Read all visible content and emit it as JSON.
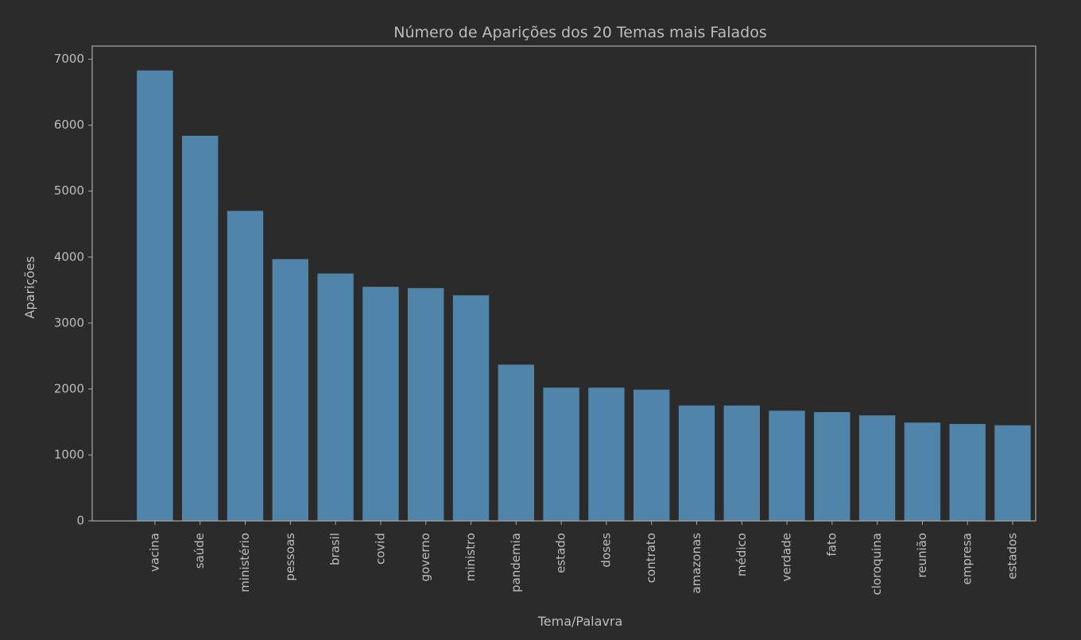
{
  "colors": {
    "background": "#2b2b2b",
    "bar": "#5084a8",
    "axis": "#a9a9a9",
    "text": "#bdbdbd"
  },
  "chart_data": {
    "type": "bar",
    "title": "Número de Aparições dos 20 Temas mais Falados",
    "xlabel": "Tema/Palavra",
    "ylabel": "Aparições",
    "ylim": [
      0,
      7200
    ],
    "yticks": [
      0,
      1000,
      2000,
      3000,
      4000,
      5000,
      6000,
      7000
    ],
    "grid": false,
    "categories": [
      "vacina",
      "saúde",
      "ministério",
      "pessoas",
      "brasil",
      "covid",
      "governo",
      "ministro",
      "pandemia",
      "estado",
      "doses",
      "contrato",
      "amazonas",
      "médico",
      "verdade",
      "fato",
      "cloroquina",
      "reunião",
      "empresa",
      "estados"
    ],
    "values": [
      6830,
      5840,
      4700,
      3970,
      3750,
      3550,
      3530,
      3420,
      2370,
      2020,
      2020,
      1990,
      1750,
      1750,
      1670,
      1650,
      1600,
      1490,
      1470,
      1450
    ]
  }
}
